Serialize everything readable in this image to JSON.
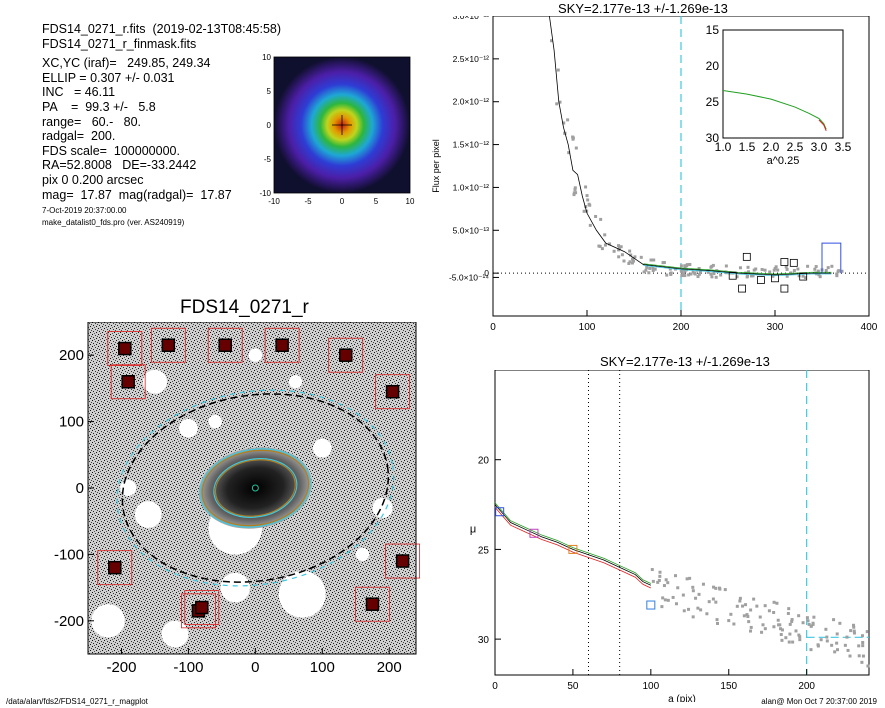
{
  "header": {
    "line1": "FDS14_0271_r.fits  (2019-02-13T08:45:58)",
    "line2": "FDS14_0271_r_finmask.fits",
    "xc_yc": "XC,YC (iraf)=   249.85, 249.34",
    "ellip": "ELLIP = 0.307 +/- 0.031",
    "inc": "INC   = 46.11",
    "pa": "PA    =  99.3 +/-   5.8",
    "range": "range=   60.-   80.",
    "radgal": "radgal=  200.",
    "fds_scale": "FDS scale=  100000000.",
    "radec": "RA=52.8008   DE=-33.2442",
    "pix": "pix 0 0.200 arcsec",
    "mag": "mag=  17.87  mag(radgal)=  17.87",
    "date": "7-Oct-2019 20:37:00.00",
    "program": "make_datalist0_fds.pro (ver. AS240919)"
  },
  "footer": {
    "path": "/data/alan/fds2/FDS14_0271_r_magplot",
    "user": "alan@  Mon Oct  7 20:37:00 2019"
  },
  "colors": {
    "cyan": "#40c8e0",
    "gray": "#a0a0a0",
    "red": "#e02020",
    "green": "#20a020",
    "blue": "#3050e0"
  },
  "chart_data": [
    {
      "type": "heatmap",
      "xlim": [
        -10,
        10
      ],
      "ylim": [
        -10,
        10
      ],
      "xticks": [
        "-10",
        "-5",
        "0",
        "5",
        "10"
      ],
      "yticks": [
        "10",
        "5",
        "0",
        "-5",
        "-10"
      ]
    },
    {
      "type": "image",
      "title": "FDS14_0271_r",
      "xlim": [
        -250,
        240
      ],
      "ylim": [
        -250,
        250
      ],
      "xticks": [
        "-200",
        "-100",
        "0",
        "100",
        "200"
      ],
      "yticks": [
        "200",
        "100",
        "0",
        "-100",
        "-200"
      ],
      "ellipses": [
        {
          "a": 200,
          "ellip": 0.307,
          "pa": 99.3,
          "style": "dashed"
        },
        {
          "a": 80,
          "ellip": 0.307,
          "pa": 99.3
        },
        {
          "a": 60,
          "ellip": 0.307,
          "pa": 99.3
        }
      ],
      "masked_stars": [
        [
          -195,
          210
        ],
        [
          -130,
          215
        ],
        [
          -45,
          215
        ],
        [
          40,
          215
        ],
        [
          135,
          200
        ],
        [
          -190,
          160
        ],
        [
          -210,
          -120
        ],
        [
          -85,
          -185
        ],
        [
          -80,
          -180
        ],
        [
          220,
          -110
        ],
        [
          175,
          -175
        ],
        [
          205,
          145
        ]
      ]
    },
    {
      "type": "scatter",
      "title": "SKY=2.177e-13 +/-1.269e-13",
      "ylabel": "Flux per pixel",
      "xlim": [
        0,
        400
      ],
      "ylim": [
        -5e-13,
        3e-12
      ],
      "xticks": [
        "0",
        "100",
        "200",
        "300",
        "400"
      ],
      "yticks": [
        "-5.0×10⁻¹⁴",
        "0",
        "5.0×10⁻¹³",
        "1.0×10⁻¹²",
        "1.5×10⁻¹²",
        "2.0×10⁻¹²",
        "2.5×10⁻¹²",
        "3.0×10⁻¹²"
      ],
      "radgal_line": 200,
      "profile": [
        [
          60,
          3e-12
        ],
        [
          65,
          2.6e-12
        ],
        [
          70,
          2e-12
        ],
        [
          75,
          1.7e-12
        ],
        [
          80,
          1.5e-12
        ],
        [
          85,
          1.2e-12
        ],
        [
          90,
          1.15e-12
        ],
        [
          95,
          9e-13
        ],
        [
          100,
          7e-13
        ],
        [
          110,
          5e-13
        ],
        [
          120,
          3.5e-13
        ],
        [
          140,
          2.5e-13
        ],
        [
          160,
          1e-13
        ],
        [
          200,
          5e-14
        ],
        [
          230,
          3e-14
        ],
        [
          260,
          0.0
        ],
        [
          300,
          -2e-14
        ],
        [
          340,
          0.0
        ],
        [
          360,
          0.0
        ]
      ],
      "annuli_squares": [
        [
          270,
          1.9e-13
        ],
        [
          310,
          1.3e-13
        ],
        [
          320,
          1.2e-13
        ],
        [
          255,
          -3e-14
        ],
        [
          285,
          -8e-14
        ],
        [
          300,
          -6e-14
        ],
        [
          310,
          -1.8e-13
        ],
        [
          265,
          -1.8e-13
        ],
        [
          330,
          -4e-14
        ]
      ],
      "sky_bar": {
        "x0": 350,
        "x1": 370,
        "y": 3.5e-13
      },
      "inset": {
        "xlabel": "a^0.25",
        "xlim": [
          1.0,
          3.5
        ],
        "ylim": [
          15,
          30
        ],
        "xticks": [
          "1.0",
          "1.5",
          "2.0",
          "2.5",
          "3.0",
          "3.5"
        ],
        "yticks": [
          "15",
          "20",
          "25",
          "30"
        ],
        "curve": [
          [
            1.0,
            23.4
          ],
          [
            1.5,
            23.9
          ],
          [
            2.0,
            24.6
          ],
          [
            2.5,
            25.7
          ],
          [
            2.8,
            26.6
          ],
          [
            3.0,
            27.3
          ],
          [
            3.1,
            28.0
          ],
          [
            3.15,
            28.8
          ]
        ]
      }
    },
    {
      "type": "scatter",
      "title": "SKY=2.177e-13 +/-1.269e-13",
      "xlabel": "a (pix)",
      "ylabel": "μ",
      "xlim": [
        0,
        240
      ],
      "ylim": [
        32,
        15
      ],
      "xticks": [
        "0",
        "50",
        "100",
        "150",
        "200"
      ],
      "yticks": [
        "20",
        "25",
        "30"
      ],
      "range_lines": [
        60,
        80
      ],
      "radgal_line": 200,
      "sky_level": 29.9,
      "profile": [
        [
          0,
          22.5
        ],
        [
          10,
          23.5
        ],
        [
          20,
          23.9
        ],
        [
          30,
          24.3
        ],
        [
          40,
          24.6
        ],
        [
          50,
          25.0
        ],
        [
          60,
          25.3
        ],
        [
          70,
          25.6
        ],
        [
          80,
          26.0
        ],
        [
          90,
          26.4
        ],
        [
          95,
          26.8
        ],
        [
          100,
          27.0
        ]
      ],
      "markers": [
        {
          "x": 3,
          "y": 22.9,
          "color": "#3050e0"
        },
        {
          "x": 25,
          "y": 24.1,
          "color": "#c040c0"
        },
        {
          "x": 50,
          "y": 25.0,
          "color": "#e08020"
        },
        {
          "x": 100,
          "y": 28.1,
          "color": "#3080e0"
        }
      ]
    }
  ]
}
